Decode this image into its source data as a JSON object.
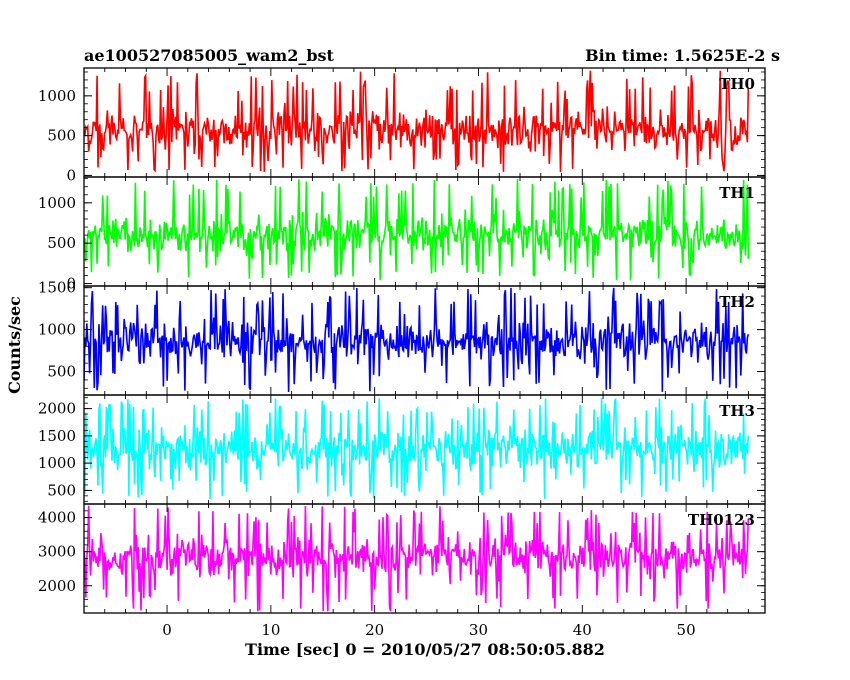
{
  "chart_data": {
    "type": "line",
    "title_left": "ae100527085005_wam2_bst",
    "title_right": "Bin time: 1.5625E-2 s",
    "xlabel": "Time [sec] 0 = 2010/05/27 08:50:05.882",
    "ylabel": "Counts/sec",
    "xlim": [
      -8.0,
      57.6
    ],
    "data_x_range": [
      -8.0,
      56.0
    ],
    "bin_time": 0.015625,
    "x_ticks": [
      0,
      10,
      20,
      30,
      40,
      50
    ],
    "panels": [
      {
        "name": "TH0",
        "color": "#ff0000",
        "ylim": [
          -20,
          1350
        ],
        "y_ticks": [
          0,
          500,
          1000
        ],
        "signal": {
          "mean": 560,
          "spread": 230,
          "min": 40,
          "max": 1320
        },
        "x_check": [
          -5,
          0,
          5,
          10,
          15,
          20,
          25,
          30,
          35,
          40,
          45,
          50,
          55
        ],
        "y_check": [
          520,
          600,
          560,
          580,
          540,
          610,
          590,
          570,
          600,
          560,
          580,
          620,
          550
        ]
      },
      {
        "name": "TH1",
        "color": "#00ff00",
        "ylim": [
          -30,
          1320
        ],
        "y_ticks": [
          0,
          500,
          1000
        ],
        "signal": {
          "mean": 600,
          "spread": 210,
          "min": 40,
          "max": 1300
        },
        "x_check": [
          -5,
          0,
          5,
          10,
          15,
          20,
          25,
          30,
          35,
          40,
          45,
          50,
          55
        ],
        "y_check": [
          590,
          610,
          600,
          620,
          600,
          580,
          610,
          600,
          590,
          620,
          600,
          610,
          640
        ]
      },
      {
        "name": "TH2",
        "color": "#0000ff",
        "ylim": [
          220,
          1520
        ],
        "y_ticks": [
          500,
          1000,
          1500
        ],
        "signal": {
          "mean": 860,
          "spread": 230,
          "min": 250,
          "max": 1500
        },
        "x_check": [
          -5,
          0,
          5,
          10,
          15,
          20,
          25,
          30,
          35,
          40,
          45,
          50,
          55
        ],
        "y_check": [
          840,
          860,
          880,
          850,
          870,
          860,
          880,
          850,
          870,
          860,
          850,
          880,
          860
        ]
      },
      {
        "name": "TH3",
        "color": "#00ffff",
        "ylim": [
          250,
          2250
        ],
        "y_ticks": [
          500,
          1000,
          1500,
          2000
        ],
        "signal": {
          "mean": 1280,
          "spread": 380,
          "min": 330,
          "max": 2200
        },
        "x_check": [
          -5,
          0,
          5,
          10,
          15,
          20,
          25,
          30,
          35,
          40,
          45,
          50,
          55
        ],
        "y_check": [
          1250,
          1300,
          1280,
          1320,
          1260,
          1240,
          1300,
          1280,
          1260,
          1300,
          1280,
          1320,
          1290
        ]
      },
      {
        "name": "TH0123",
        "color": "#ff00ff",
        "ylim": [
          1200,
          4400
        ],
        "y_ticks": [
          2000,
          3000,
          4000
        ],
        "signal": {
          "mean": 2850,
          "spread": 520,
          "min": 1250,
          "max": 4350
        },
        "x_check": [
          -5,
          0,
          5,
          10,
          15,
          20,
          25,
          30,
          35,
          40,
          45,
          50,
          55
        ],
        "y_check": [
          2800,
          2860,
          2850,
          2900,
          2830,
          2820,
          2870,
          2850,
          2830,
          2880,
          2840,
          2900,
          2860
        ]
      }
    ]
  }
}
